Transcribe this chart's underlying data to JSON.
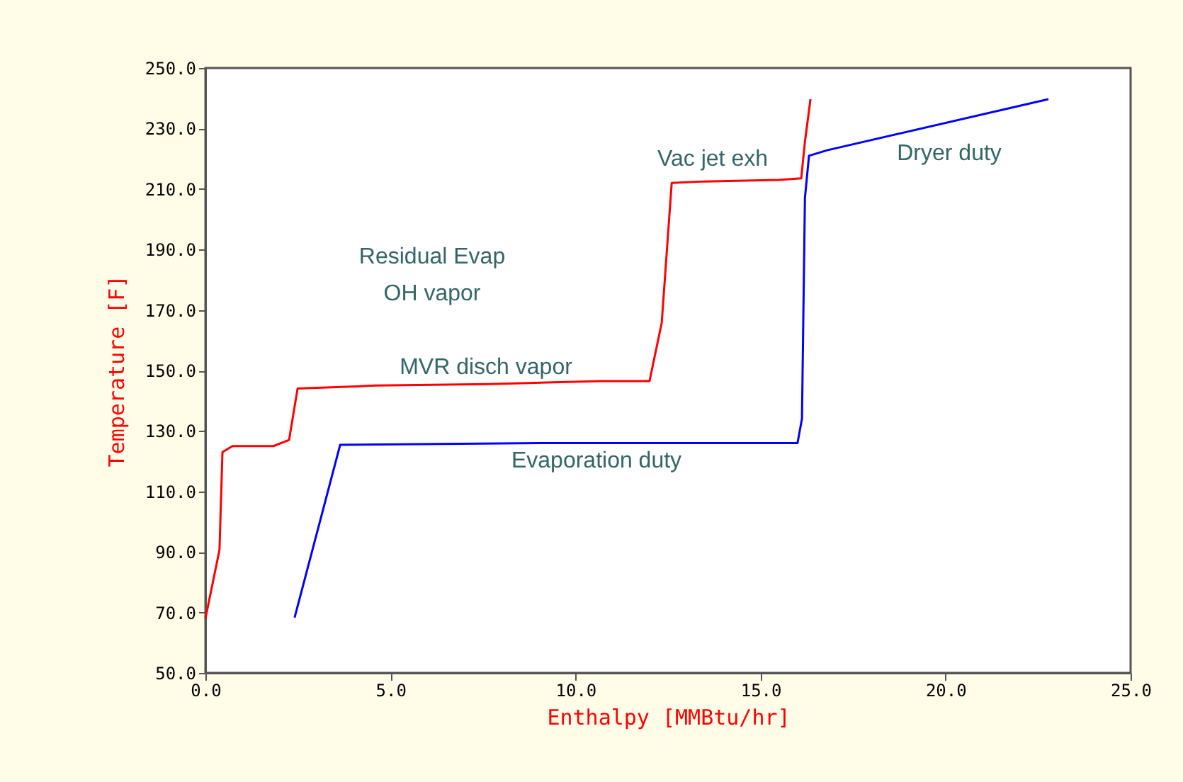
{
  "chart_data": {
    "type": "line",
    "xlabel": "Enthalpy [MMBtu/hr]",
    "ylabel": "Temperature [F]",
    "xlim": [
      0,
      25
    ],
    "ylim": [
      50,
      250
    ],
    "xticks": [
      {
        "value": 0,
        "label": "0.0"
      },
      {
        "value": 5,
        "label": "5.0"
      },
      {
        "value": 10,
        "label": "10.0"
      },
      {
        "value": 15,
        "label": "15.0"
      },
      {
        "value": 20,
        "label": "20.0"
      },
      {
        "value": 25,
        "label": "25.0"
      }
    ],
    "yticks": [
      {
        "value": 50,
        "label": "50.0"
      },
      {
        "value": 70,
        "label": "70.0"
      },
      {
        "value": 90,
        "label": "90.0"
      },
      {
        "value": 110,
        "label": "110.0"
      },
      {
        "value": 130,
        "label": "130.0"
      },
      {
        "value": 150,
        "label": "150.0"
      },
      {
        "value": 170,
        "label": "170.0"
      },
      {
        "value": 190,
        "label": "190.0"
      },
      {
        "value": 210,
        "label": "210.0"
      },
      {
        "value": 230,
        "label": "230.0"
      },
      {
        "value": 250,
        "label": "250.0"
      }
    ],
    "grid": false,
    "marker": "none",
    "line_style": "solid",
    "series": [
      {
        "color": "#ff0000",
        "x": [
          0,
          0.38,
          0.46,
          0.73,
          1.84,
          2.26,
          2.49,
          4.6,
          7.66,
          10.7,
          12.0,
          12.33,
          12.6,
          13.5,
          15.5,
          16.1,
          16.2,
          16.35
        ],
        "values": [
          68,
          90.7,
          123,
          125,
          125,
          127,
          144,
          145,
          145.5,
          146.5,
          146.5,
          165.7,
          212,
          212.5,
          213,
          213.5,
          225.6,
          239.7
        ]
      },
      {
        "color": "#0000ff",
        "x": [
          2.41,
          3.64,
          9.19,
          16.0,
          16.12,
          16.2,
          16.31,
          16.8,
          22.78
        ],
        "values": [
          68.3,
          125.4,
          126,
          126,
          134,
          207,
          221,
          222.8,
          239.7
        ]
      }
    ],
    "annotations": [
      "Residual Evap\nOH vapor",
      "MVR disch vapor",
      "Evaporation duty",
      "Vac jet exh",
      "Dryer duty"
    ]
  }
}
